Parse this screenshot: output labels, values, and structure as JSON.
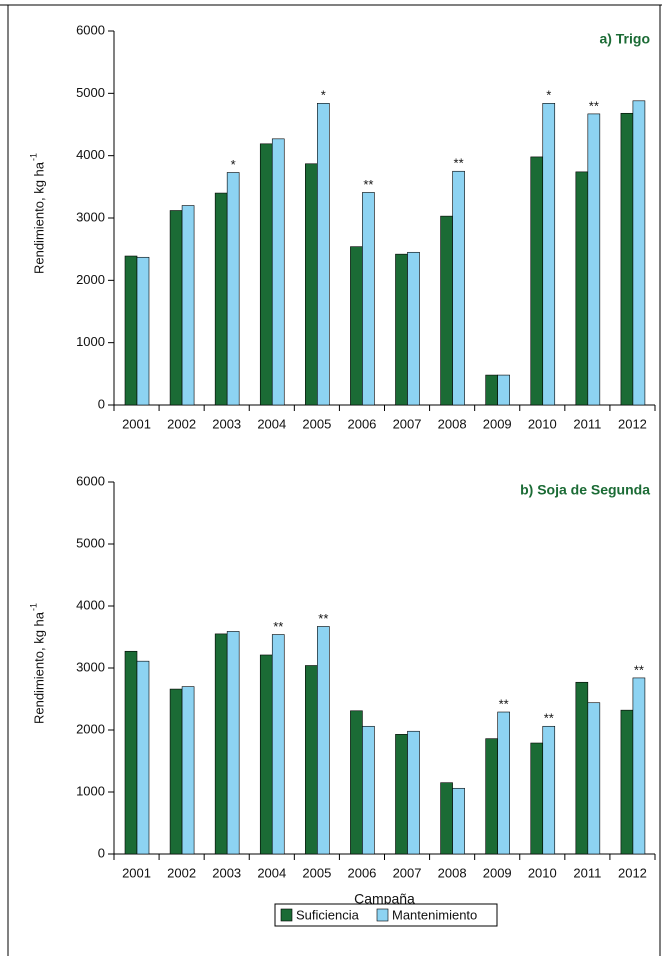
{
  "chart_data": [
    {
      "type": "bar",
      "title": "a) Trigo",
      "ylabel": "Rendimiento, kg ha",
      "ylabel_sup": "-1",
      "categories": [
        "2001",
        "2002",
        "2003",
        "2004",
        "2005",
        "2006",
        "2007",
        "2008",
        "2009",
        "2010",
        "2011",
        "2012"
      ],
      "series": [
        {
          "name": "Suficiencia",
          "color": "#1b6b35",
          "values": [
            2390,
            3120,
            3400,
            4190,
            3870,
            2540,
            2420,
            3030,
            480,
            3980,
            3740,
            4680
          ]
        },
        {
          "name": "Mantenimiento",
          "color": "#8dd3f2",
          "values": [
            2370,
            3200,
            3730,
            4270,
            4840,
            3410,
            2450,
            3750,
            480,
            4840,
            4670,
            4880
          ]
        }
      ],
      "annotations": [
        {
          "category": "2003",
          "text": "*"
        },
        {
          "category": "2005",
          "text": "*"
        },
        {
          "category": "2006",
          "text": "**"
        },
        {
          "category": "2008",
          "text": "**"
        },
        {
          "category": "2010",
          "text": "*"
        },
        {
          "category": "2011",
          "text": "**"
        }
      ],
      "ylim": [
        0,
        6000
      ],
      "yticks": [
        0,
        1000,
        2000,
        3000,
        4000,
        5000,
        6000
      ]
    },
    {
      "type": "bar",
      "title": "b) Soja de Segunda",
      "ylabel": "Rendimiento, kg ha",
      "ylabel_sup": "-1",
      "xlabel": "Campaña",
      "categories": [
        "2001",
        "2002",
        "2003",
        "2004",
        "2005",
        "2006",
        "2007",
        "2008",
        "2009",
        "2010",
        "2011",
        "2012"
      ],
      "series": [
        {
          "color": "#1b6b35",
          "values": [
            3270,
            2660,
            3550,
            3210,
            3040,
            2310,
            1930,
            1150,
            1860,
            1790,
            2770,
            2320
          ]
        },
        {
          "color": "#8dd3f2",
          "values": [
            3110,
            2700,
            3590,
            3540,
            3670,
            2060,
            1980,
            1060,
            2290,
            2060,
            2440,
            2840
          ]
        }
      ],
      "annotations": [
        {
          "category": "2004",
          "text": "**"
        },
        {
          "category": "2005",
          "text": "**"
        },
        {
          "category": "2009",
          "text": "**"
        },
        {
          "category": "2010",
          "text": "**"
        },
        {
          "category": "2012",
          "text": "**"
        }
      ],
      "ylim": [
        0,
        6000
      ],
      "yticks": [
        0,
        1000,
        2000,
        3000,
        4000,
        5000,
        6000
      ]
    }
  ]
}
